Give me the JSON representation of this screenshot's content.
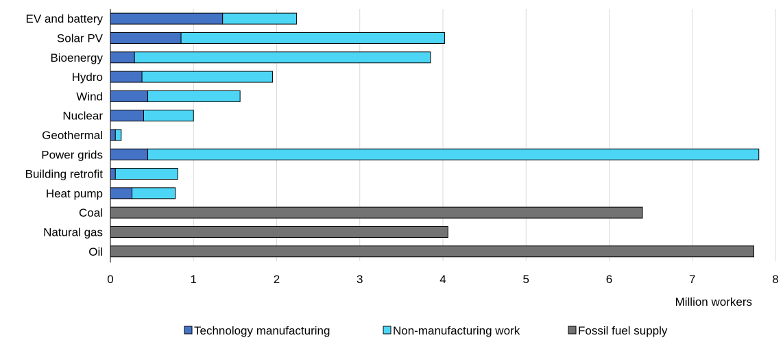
{
  "chart_data": {
    "type": "bar",
    "orientation": "horizontal",
    "stacked": true,
    "categories": [
      "EV and battery",
      "Solar PV",
      "Bioenergy",
      "Hydro",
      "Wind",
      "Nuclear",
      "Geothermal",
      "Power grids",
      "Building retrofit",
      "Heat pump",
      "Coal",
      "Natural gas",
      "Oil"
    ],
    "series": [
      {
        "name": "Technology manufacturing",
        "color": "#4472c4",
        "values": [
          1.35,
          0.85,
          0.29,
          0.38,
          0.45,
          0.4,
          0.06,
          0.45,
          0.06,
          0.26,
          0,
          0,
          0
        ]
      },
      {
        "name": "Non-manufacturing work",
        "color": "#4dd5f5",
        "values": [
          0.89,
          3.17,
          3.56,
          1.57,
          1.11,
          0.6,
          0.07,
          7.35,
          0.75,
          0.52,
          0,
          0,
          0
        ]
      },
      {
        "name": "Fossil fuel supply",
        "color": "#737373",
        "values": [
          0,
          0,
          0,
          0,
          0,
          0,
          0,
          0,
          0,
          0,
          6.4,
          4.06,
          7.74
        ]
      }
    ],
    "xlim": [
      0,
      8
    ],
    "xticks": [
      "0",
      "1",
      "2",
      "3",
      "4",
      "5",
      "6",
      "7",
      "8"
    ],
    "xlabel": "Million workers",
    "grid": "vertical",
    "legend_position": "bottom"
  }
}
